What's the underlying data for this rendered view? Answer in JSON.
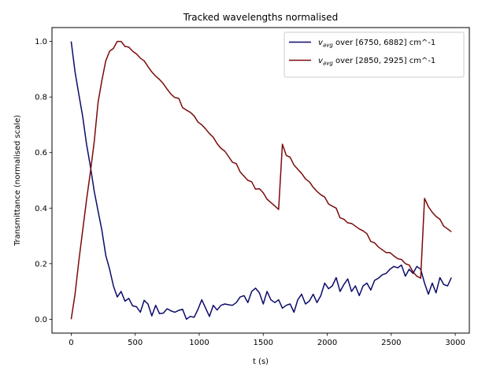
{
  "chart_data": {
    "type": "line",
    "title": "Tracked wavelengths normalised",
    "xlabel": "t (s)",
    "ylabel": "Transmittance (normalised scale)",
    "xlim": [
      -150,
      3110
    ],
    "ylim": [
      -0.05,
      1.05
    ],
    "xticks": [
      0,
      500,
      1000,
      1500,
      2000,
      2500,
      3000
    ],
    "yticks": [
      0.0,
      0.2,
      0.4,
      0.6,
      0.8,
      1.0
    ],
    "xtick_labels": [
      "0",
      "500",
      "1000",
      "1500",
      "2000",
      "2500",
      "3000"
    ],
    "ytick_labels": [
      "0.0",
      "0.2",
      "0.4",
      "0.6",
      "0.8",
      "1.0"
    ],
    "legend_position": "top-right",
    "grid": false,
    "series": [
      {
        "name": "v_avg over [6750, 6882] cm^-1",
        "legend_prefix": "v",
        "legend_sub": "avg",
        "legend_suffix": " over [6750, 6882] cm^-1",
        "color": "#0b0b6b",
        "x": [
          0,
          30,
          60,
          90,
          120,
          150,
          180,
          210,
          240,
          270,
          300,
          330,
          360,
          390,
          420,
          450,
          480,
          510,
          540,
          570,
          600,
          630,
          660,
          690,
          720,
          750,
          780,
          810,
          840,
          870,
          900,
          930,
          960,
          990,
          1020,
          1050,
          1080,
          1110,
          1140,
          1170,
          1200,
          1230,
          1260,
          1290,
          1320,
          1350,
          1380,
          1410,
          1440,
          1470,
          1500,
          1530,
          1560,
          1590,
          1620,
          1650,
          1680,
          1710,
          1740,
          1770,
          1800,
          1830,
          1860,
          1890,
          1920,
          1950,
          1980,
          2010,
          2040,
          2070,
          2100,
          2130,
          2160,
          2190,
          2220,
          2250,
          2280,
          2310,
          2340,
          2370,
          2400,
          2430,
          2460,
          2490,
          2520,
          2550,
          2580,
          2610,
          2640,
          2670,
          2700,
          2730,
          2760,
          2790,
          2820,
          2850,
          2880,
          2910,
          2940,
          2970
        ],
        "y": [
          1.0,
          0.89,
          0.81,
          0.73,
          0.63,
          0.55,
          0.46,
          0.39,
          0.32,
          0.23,
          0.18,
          0.12,
          0.08,
          0.1,
          0.065,
          0.075,
          0.048,
          0.045,
          0.025,
          0.068,
          0.055,
          0.012,
          0.05,
          0.02,
          0.022,
          0.038,
          0.03,
          0.025,
          0.032,
          0.036,
          0.0,
          0.01,
          0.007,
          0.035,
          0.07,
          0.04,
          0.01,
          0.05,
          0.033,
          0.05,
          0.055,
          0.052,
          0.05,
          0.06,
          0.08,
          0.085,
          0.06,
          0.1,
          0.112,
          0.095,
          0.055,
          0.1,
          0.07,
          0.06,
          0.07,
          0.04,
          0.05,
          0.055,
          0.025,
          0.07,
          0.09,
          0.055,
          0.065,
          0.09,
          0.06,
          0.085,
          0.13,
          0.11,
          0.12,
          0.15,
          0.1,
          0.125,
          0.145,
          0.1,
          0.12,
          0.085,
          0.12,
          0.13,
          0.105,
          0.14,
          0.148,
          0.16,
          0.165,
          0.18,
          0.19,
          0.185,
          0.195,
          0.155,
          0.18,
          0.165,
          0.19,
          0.18,
          0.13,
          0.09,
          0.13,
          0.095,
          0.15,
          0.125,
          0.12,
          0.15
        ]
      },
      {
        "name": "v_avg over [2850, 2925] cm^-1",
        "legend_prefix": "v",
        "legend_sub": "avg",
        "legend_suffix": " over [2850, 2925] cm^-1",
        "color": "#7a0a0a",
        "x": [
          0,
          30,
          60,
          90,
          120,
          150,
          180,
          210,
          240,
          270,
          300,
          330,
          360,
          390,
          420,
          450,
          480,
          510,
          540,
          570,
          600,
          630,
          660,
          690,
          720,
          750,
          780,
          810,
          840,
          870,
          900,
          930,
          960,
          990,
          1020,
          1050,
          1080,
          1110,
          1140,
          1170,
          1200,
          1230,
          1260,
          1290,
          1320,
          1350,
          1380,
          1410,
          1440,
          1470,
          1500,
          1530,
          1560,
          1590,
          1620,
          1650,
          1680,
          1710,
          1740,
          1770,
          1800,
          1830,
          1860,
          1890,
          1920,
          1950,
          1980,
          2010,
          2040,
          2070,
          2100,
          2130,
          2160,
          2190,
          2220,
          2250,
          2280,
          2310,
          2340,
          2370,
          2400,
          2430,
          2460,
          2490,
          2520,
          2550,
          2580,
          2610,
          2640,
          2670,
          2700,
          2730,
          2760,
          2790,
          2820,
          2850,
          2880,
          2910,
          2940,
          2970
        ],
        "y": [
          0.0,
          0.09,
          0.21,
          0.32,
          0.43,
          0.53,
          0.64,
          0.78,
          0.86,
          0.93,
          0.965,
          0.975,
          1.0,
          1.0,
          0.982,
          0.98,
          0.965,
          0.955,
          0.94,
          0.93,
          0.91,
          0.89,
          0.875,
          0.863,
          0.848,
          0.828,
          0.81,
          0.798,
          0.795,
          0.762,
          0.753,
          0.745,
          0.732,
          0.71,
          0.7,
          0.685,
          0.668,
          0.655,
          0.632,
          0.615,
          0.605,
          0.585,
          0.565,
          0.56,
          0.53,
          0.515,
          0.5,
          0.495,
          0.468,
          0.47,
          0.455,
          0.432,
          0.42,
          0.408,
          0.395,
          0.63,
          0.59,
          0.583,
          0.555,
          0.54,
          0.525,
          0.505,
          0.495,
          0.475,
          0.46,
          0.448,
          0.44,
          0.415,
          0.407,
          0.4,
          0.365,
          0.36,
          0.347,
          0.345,
          0.335,
          0.325,
          0.318,
          0.308,
          0.28,
          0.275,
          0.26,
          0.25,
          0.24,
          0.24,
          0.228,
          0.218,
          0.215,
          0.2,
          0.195,
          0.17,
          0.155,
          0.148,
          0.435,
          0.405,
          0.385,
          0.37,
          0.36,
          0.335,
          0.325,
          0.315
        ]
      }
    ]
  }
}
